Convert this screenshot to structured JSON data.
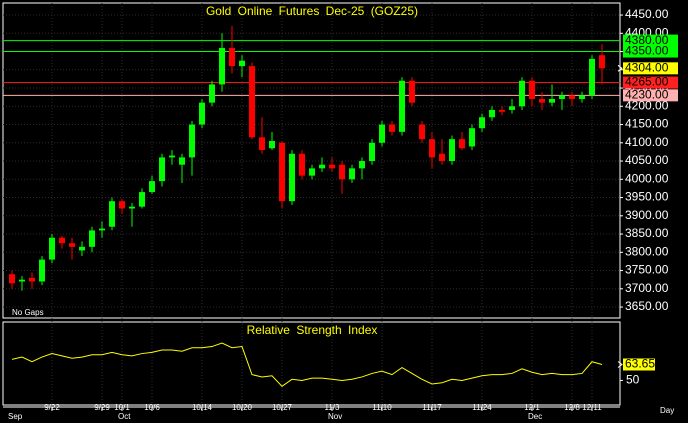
{
  "chart_data": [
    {
      "type": "candlestick",
      "title": "Gold Online Futures Dec-25  (GOZ25)",
      "note": "No Gaps",
      "categories": [
        null,
        null,
        null,
        null,
        "9/22",
        null,
        null,
        null,
        null,
        "9/29",
        null,
        "10/1",
        null,
        null,
        "10/6",
        null,
        null,
        null,
        null,
        "10/14",
        null,
        null,
        null,
        "10/20",
        null,
        null,
        null,
        "10/27",
        null,
        null,
        null,
        null,
        "11/3",
        null,
        null,
        null,
        null,
        "11/10",
        null,
        null,
        null,
        null,
        "11/17",
        null,
        null,
        null,
        null,
        "11/24",
        null,
        null,
        null,
        null,
        "12/1",
        null,
        null,
        null,
        "12/8",
        null,
        "12/11",
        null
      ],
      "months": [
        {
          "label": "Sep",
          "start": 0
        },
        {
          "label": "Oct",
          "start": 11
        },
        {
          "label": "Nov",
          "start": 32
        },
        {
          "label": "Dec",
          "start": 52
        }
      ],
      "x_unit_label": "Day",
      "open": [
        3740,
        3720,
        3730,
        3720,
        3780,
        3840,
        3825,
        3805,
        3815,
        3860,
        3870,
        3940,
        3920,
        3925,
        3965,
        3995,
        4060,
        4040,
        4060,
        4150,
        4210,
        4260,
        4360,
        4310,
        4310,
        4115,
        4085,
        4100,
        3940,
        4070,
        4010,
        4030,
        4040,
        4040,
        4000,
        4030,
        4050,
        4100,
        4150,
        4130,
        4270,
        4150,
        4110,
        4070,
        4050,
        4110,
        4090,
        4140,
        4170,
        4190,
        4190,
        4200,
        4270,
        4220,
        4210,
        4220,
        4230,
        4220,
        4230,
        4340
      ],
      "high": [
        3750,
        3735,
        3745,
        3790,
        3850,
        3845,
        3840,
        3830,
        3870,
        3885,
        3950,
        3945,
        3935,
        3975,
        4010,
        4070,
        4080,
        4070,
        4160,
        4220,
        4270,
        4400,
        4420,
        4340,
        4320,
        4170,
        4130,
        4105,
        4080,
        4080,
        4040,
        4060,
        4060,
        4050,
        4040,
        4060,
        4110,
        4160,
        4160,
        4280,
        4280,
        4160,
        4130,
        4110,
        4120,
        4130,
        4150,
        4180,
        4200,
        4200,
        4220,
        4280,
        4280,
        4240,
        4260,
        4240,
        4240,
        4240,
        4340,
        4370
      ],
      "low": [
        3700,
        3695,
        3700,
        3710,
        3770,
        3810,
        3780,
        3790,
        3800,
        3840,
        3860,
        3905,
        3870,
        3920,
        3960,
        3980,
        4040,
        3990,
        4010,
        4140,
        4200,
        4240,
        4290,
        4280,
        4110,
        4070,
        4080,
        3920,
        3930,
        4000,
        4000,
        4020,
        4020,
        3960,
        3990,
        4000,
        4040,
        4090,
        4120,
        4120,
        4200,
        4100,
        4030,
        4040,
        4040,
        4080,
        4080,
        4130,
        4160,
        4175,
        4180,
        4190,
        4200,
        4190,
        4200,
        4190,
        4200,
        4210,
        4220,
        4260
      ],
      "close": [
        3715,
        3725,
        3720,
        3780,
        3840,
        3825,
        3815,
        3815,
        3860,
        3865,
        3940,
        3920,
        3925,
        3965,
        3995,
        4060,
        4065,
        4060,
        4150,
        4210,
        4260,
        4360,
        4310,
        4325,
        4115,
        4080,
        4105,
        3940,
        4070,
        4010,
        4030,
        4040,
        4030,
        4000,
        4030,
        4050,
        4100,
        4150,
        4130,
        4270,
        4210,
        4110,
        4060,
        4050,
        4110,
        4085,
        4140,
        4170,
        4190,
        4185,
        4200,
        4270,
        4220,
        4210,
        4220,
        4230,
        4220,
        4230,
        4330,
        4304
      ],
      "up_color": "#00ff00",
      "down_color": "#ff0000",
      "ylim": [
        3620,
        4483
      ],
      "yticks": [
        {
          "value": 3650,
          "label": "3650.00"
        },
        {
          "value": 3700,
          "label": "3700.00"
        },
        {
          "value": 3750,
          "label": "3750.00"
        },
        {
          "value": 3800,
          "label": "3800.00"
        },
        {
          "value": 3850,
          "label": "3850.00"
        },
        {
          "value": 3900,
          "label": "3900.00"
        },
        {
          "value": 3950,
          "label": "3950.00"
        },
        {
          "value": 4000,
          "label": "4000.00"
        },
        {
          "value": 4050,
          "label": "4050.00"
        },
        {
          "value": 4100,
          "label": "4100.00"
        },
        {
          "value": 4150,
          "label": "4150.00"
        },
        {
          "value": 4200,
          "label": "4200.00"
        },
        {
          "value": 4250,
          "label": "4250.00"
        },
        {
          "value": 4300,
          "label": "4300.00"
        },
        {
          "value": 4350,
          "label": "4350.00"
        },
        {
          "value": 4400,
          "label": "4400.00"
        },
        {
          "value": 4450,
          "label": "4450.00"
        }
      ],
      "levels": [
        {
          "value": 4380,
          "label": "4380.00",
          "color": "#00ff00"
        },
        {
          "value": 4350,
          "label": "4350.00",
          "color": "#00ff00"
        },
        {
          "value": 4265,
          "label": "4265.00",
          "color": "#ff2020"
        },
        {
          "value": 4230,
          "label": "4230.00",
          "color": "#ffb0b0"
        }
      ],
      "last_label": "4304.00",
      "last_color": "#ffff00"
    },
    {
      "type": "line",
      "title": "Relative Strength Index",
      "values": [
        68,
        70,
        66,
        70,
        73,
        71,
        69,
        70,
        72,
        72,
        74,
        72,
        71,
        73,
        74,
        76,
        76,
        75,
        78,
        78,
        79,
        82,
        78,
        79,
        55,
        53,
        54,
        45,
        51,
        50,
        52,
        52,
        51,
        50,
        51,
        53,
        56,
        58,
        55,
        61,
        56,
        51,
        47,
        48,
        51,
        50,
        52,
        54,
        55,
        55,
        56,
        60,
        57,
        55,
        56,
        55,
        55,
        56,
        66,
        63.65
      ],
      "color": "#ffff00",
      "ylim": [
        29,
        100
      ],
      "yticks": [
        50
      ],
      "last_label": "63.65"
    }
  ]
}
